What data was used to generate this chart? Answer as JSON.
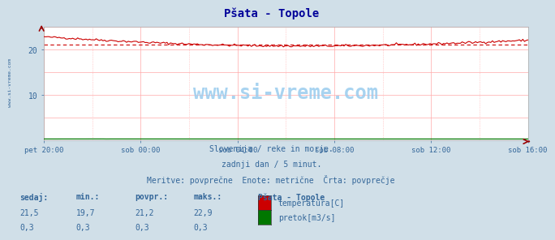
{
  "title": "Pšata - Topole",
  "bg_color": "#d0dfe8",
  "plot_bg_color": "#ffffff",
  "x_labels": [
    "pet 20:00",
    "sob 00:00",
    "sob 04:00",
    "sob 08:00",
    "sob 12:00",
    "sob 16:00"
  ],
  "y_min": 0,
  "y_max": 25,
  "y_ticks": [
    10,
    20
  ],
  "temp_min": 19.7,
  "temp_max": 22.9,
  "temp_avg": 21.2,
  "temp_current": 21.5,
  "flow_val": 0.3,
  "temp_color": "#cc0000",
  "flow_color": "#007700",
  "avg_line_color": "#cc0000",
  "grid_color": "#ffaaaa",
  "grid_color_v": "#ffaaaa",
  "text_color": "#336699",
  "title_color": "#000099",
  "watermark": "www.si-vreme.com",
  "subtitle1": "Slovenija / reke in morje.",
  "subtitle2": "zadnji dan / 5 minut.",
  "subtitle3": "Meritve: povrpečne  Enote: metrične  Črta: povrpečje",
  "subtitle3_exact": "Meritve: povprečne  Enote: metrične  Črta: povprečje",
  "legend_title": "Pšata - Topole",
  "legend_items": [
    "temperatura[C]",
    "pretok[m3/s]"
  ],
  "legend_colors": [
    "#cc0000",
    "#007700"
  ],
  "table_headers": [
    "sedaj:",
    "min.:",
    "povpr.:",
    "maks.:"
  ],
  "table_row1": [
    "21,5",
    "19,7",
    "21,2",
    "22,9"
  ],
  "table_row2": [
    "0,3",
    "0,3",
    "0,3",
    "0,3"
  ],
  "n_points": 288,
  "sidebar_text": "www.si-vreme.com",
  "sidebar_color": "#336699"
}
